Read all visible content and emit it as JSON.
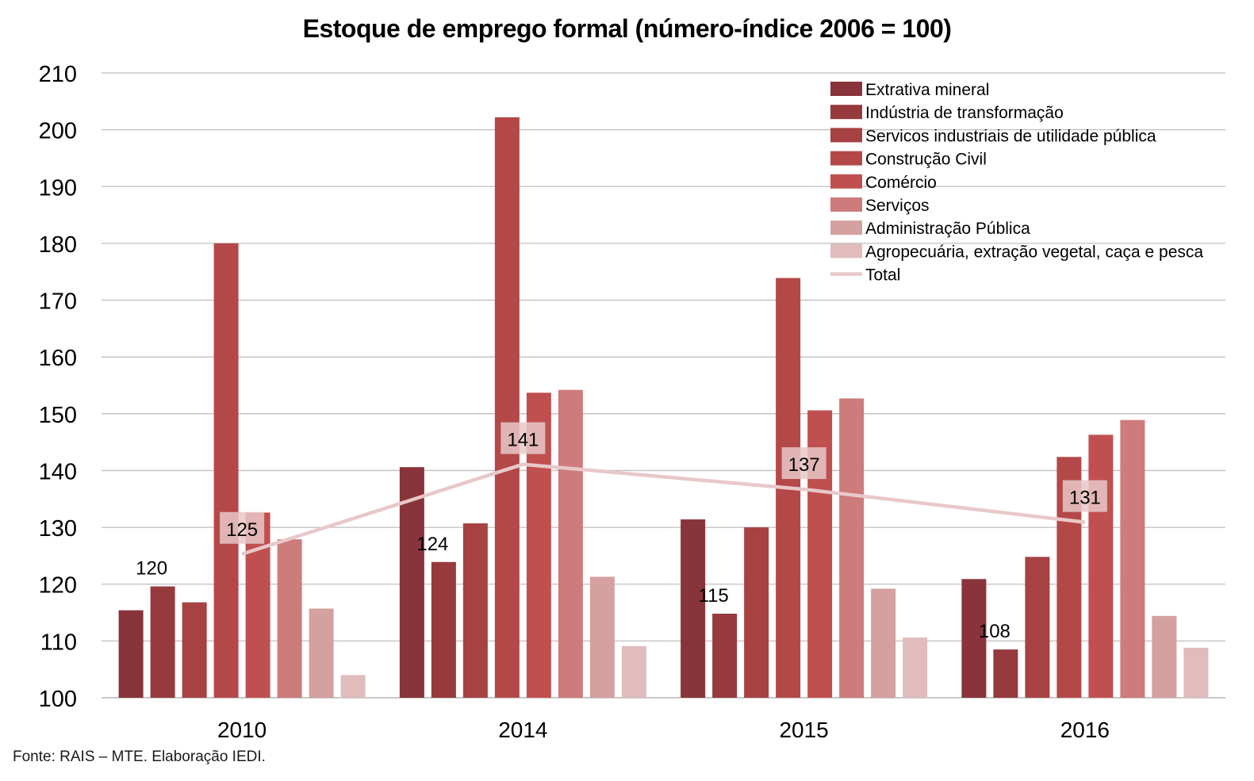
{
  "chart_data": {
    "type": "bar",
    "title": "Estoque de emprego formal (número-índice 2006 = 100)",
    "source": "Fonte: RAIS – MTE. Elaboração IEDI.",
    "categories": [
      "2010",
      "2014",
      "2015",
      "2016"
    ],
    "ylim": [
      100,
      210
    ],
    "yticks": [
      100,
      110,
      120,
      130,
      140,
      150,
      160,
      170,
      180,
      190,
      200,
      210
    ],
    "grid": true,
    "legend_position": "top-right",
    "series": [
      {
        "name": "Extrativa mineral",
        "color": "#88343a",
        "values": [
          115.4,
          140.6,
          131.4,
          120.9
        ]
      },
      {
        "name": "Indústria de transformação",
        "color": "#963a3d",
        "values": [
          119.6,
          123.9,
          114.8,
          108.5
        ],
        "data_labels": [
          "120",
          "124",
          "115",
          "108"
        ]
      },
      {
        "name": "Servicos industriais de utilidade pública",
        "color": "#a64242",
        "values": [
          116.8,
          130.7,
          130.0,
          124.8
        ]
      },
      {
        "name": "Construção Civil",
        "color": "#b44848",
        "values": [
          180.0,
          202.2,
          173.9,
          142.4
        ]
      },
      {
        "name": "Comércio",
        "color": "#c05050",
        "values": [
          132.6,
          153.7,
          150.6,
          146.3
        ]
      },
      {
        "name": "Serviços",
        "color": "#cd7b7b",
        "values": [
          127.9,
          154.2,
          152.7,
          148.9
        ]
      },
      {
        "name": "Administração Pública",
        "color": "#d4a0a0",
        "values": [
          115.7,
          121.3,
          119.2,
          114.4
        ]
      },
      {
        "name": "Agropecuária, extração vegetal, caça e pesca",
        "color": "#e0bcbc",
        "values": [
          104.0,
          109.1,
          110.6,
          108.8
        ]
      }
    ],
    "line": {
      "name": "Total",
      "color": "#e8c8c8",
      "values": [
        125.3,
        141.1,
        136.7,
        130.9
      ],
      "data_labels": [
        "125",
        "141",
        "137",
        "131"
      ]
    }
  }
}
